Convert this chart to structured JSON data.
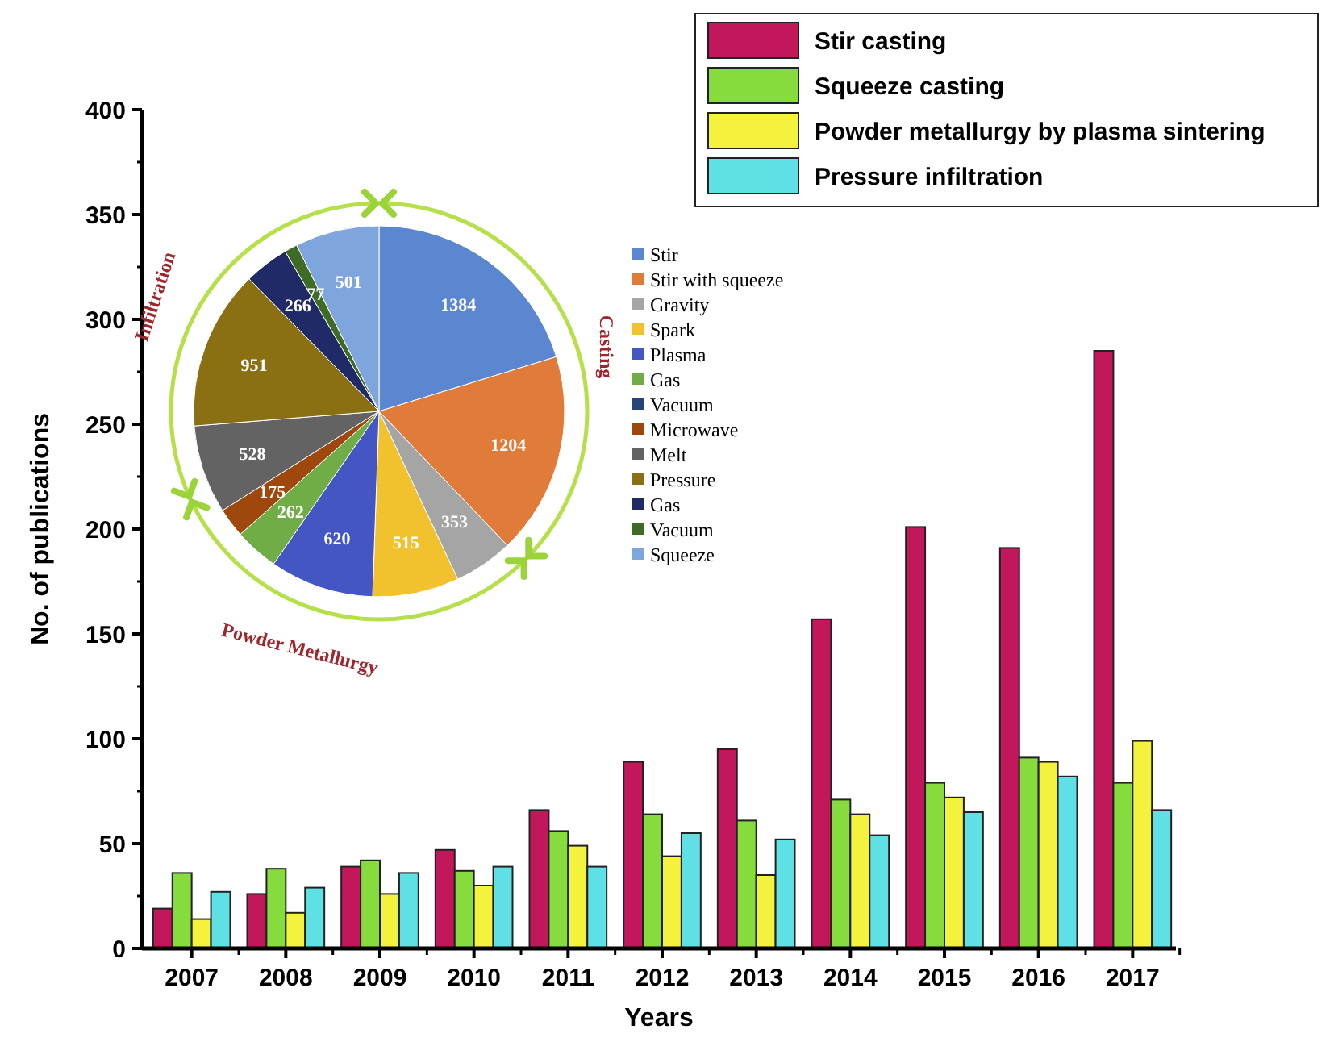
{
  "chart_data": [
    {
      "type": "bar",
      "xlabel": "Years",
      "ylabel": "No. of publications",
      "categories": [
        "2007",
        "2008",
        "2009",
        "2010",
        "2011",
        "2012",
        "2013",
        "2014",
        "2015",
        "2016",
        "2017"
      ],
      "series": [
        {
          "name": "Stir casting",
          "color": "#c2185b",
          "values": [
            19,
            26,
            39,
            47,
            66,
            89,
            95,
            157,
            201,
            191,
            285
          ]
        },
        {
          "name": "Squeeze casting",
          "color": "#86dc3c",
          "values": [
            36,
            38,
            42,
            37,
            56,
            64,
            61,
            71,
            79,
            91,
            79
          ]
        },
        {
          "name": "Powder metallurgy by plasma sintering",
          "color": "#f4f23c",
          "values": [
            14,
            17,
            26,
            30,
            49,
            44,
            35,
            64,
            72,
            89,
            99
          ]
        },
        {
          "name": "Pressure infiltration",
          "color": "#5ee0e4",
          "values": [
            27,
            29,
            36,
            39,
            39,
            55,
            52,
            54,
            65,
            82,
            66
          ]
        }
      ],
      "ylim": [
        0,
        400
      ],
      "yticks": [
        0,
        50,
        100,
        150,
        200,
        250,
        300,
        350,
        400
      ],
      "legend": "top right"
    },
    {
      "type": "pie",
      "categories": [
        "Stir",
        "Stir with squeeze",
        "Gravity",
        "Spark",
        "Plasma",
        "Gas",
        "Vacuum",
        "Microwave",
        "Melt",
        "Pressure",
        "Gas",
        "Vacuum",
        "Squeeze"
      ],
      "values": [
        1384,
        1204,
        353,
        515,
        620,
        262,
        null,
        175,
        528,
        951,
        266,
        77,
        501
      ],
      "colors": [
        "#5b86d0",
        "#e07b39",
        "#a5a5a5",
        "#f2c12e",
        "#4456c4",
        "#70ad47",
        "#264478",
        "#9e480e",
        "#636363",
        "#8a6f13",
        "#1f2a66",
        "#3f6b25",
        "#7fa6dc"
      ],
      "data_labels": true,
      "legend": "right",
      "annotations": [
        "Casting",
        "Powder Metallurgy",
        "Infiltration"
      ]
    }
  ]
}
